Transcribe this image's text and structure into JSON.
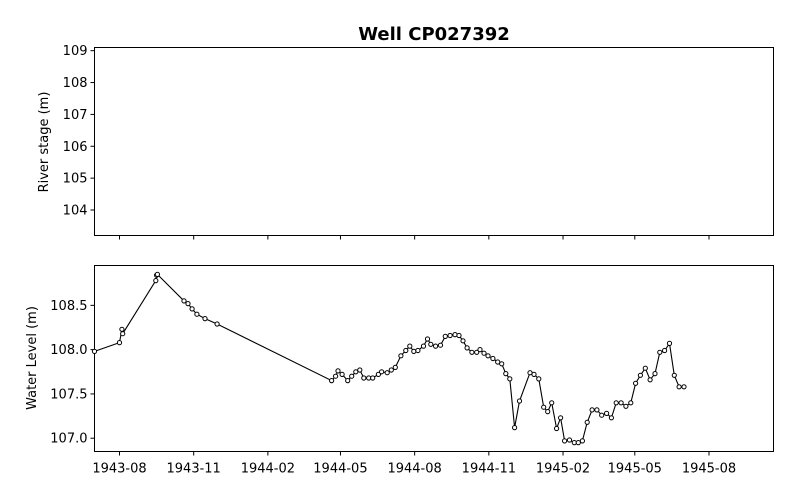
{
  "chart_data": [
    {
      "type": "line",
      "title": "Well CP027392",
      "xlabel": "",
      "ylabel": "River stage (m)",
      "xlim": [
        "1943-07-01",
        "1945-10-20"
      ],
      "ylim": [
        103.2,
        109.1
      ],
      "yticks": [
        "104",
        "105",
        "106",
        "107",
        "108",
        "109"
      ],
      "series": []
    },
    {
      "type": "line",
      "xlabel": "",
      "ylabel": "Water Level (m)",
      "xlim": [
        "1943-07-01",
        "1945-10-20"
      ],
      "ylim": [
        106.85,
        108.95
      ],
      "yticks": [
        "107.0",
        "107.5",
        "108.0",
        "108.5"
      ],
      "xticks": [
        "1943-08",
        "1943-11",
        "1944-02",
        "1944-05",
        "1944-08",
        "1944-11",
        "1945-02",
        "1945-05",
        "1945-08"
      ],
      "grid": false,
      "series": [
        {
          "color": "#000000",
          "marker": "circle-open",
          "points": [
            [
              "1943-07-01",
              107.98
            ],
            [
              "1943-08-01",
              108.08
            ],
            [
              "1943-08-04",
              108.23
            ],
            [
              "1943-08-05",
              108.18
            ],
            [
              "1943-09-15",
              108.78
            ],
            [
              "1943-09-16",
              108.84
            ],
            [
              "1943-09-17",
              108.85
            ],
            [
              "1943-10-20",
              108.55
            ],
            [
              "1943-10-25",
              108.52
            ],
            [
              "1943-10-30",
              108.46
            ],
            [
              "1943-11-05",
              108.4
            ],
            [
              "1943-11-15",
              108.35
            ],
            [
              "1943-11-30",
              108.29
            ],
            [
              "1944-04-20",
              107.65
            ],
            [
              "1944-04-25",
              107.7
            ],
            [
              "1944-04-28",
              107.76
            ],
            [
              "1944-05-03",
              107.72
            ],
            [
              "1944-05-10",
              107.65
            ],
            [
              "1944-05-15",
              107.7
            ],
            [
              "1944-05-20",
              107.75
            ],
            [
              "1944-05-25",
              107.77
            ],
            [
              "1944-05-30",
              107.68
            ],
            [
              "1944-06-05",
              107.68
            ],
            [
              "1944-06-10",
              107.68
            ],
            [
              "1944-06-17",
              107.72
            ],
            [
              "1944-06-21",
              107.75
            ],
            [
              "1944-06-28",
              107.74
            ],
            [
              "1944-07-03",
              107.77
            ],
            [
              "1944-07-08",
              107.8
            ],
            [
              "1944-07-15",
              107.93
            ],
            [
              "1944-07-21",
              107.99
            ],
            [
              "1944-07-26",
              108.04
            ],
            [
              "1944-07-31",
              107.98
            ],
            [
              "1944-08-05",
              107.99
            ],
            [
              "1944-08-12",
              108.04
            ],
            [
              "1944-08-17",
              108.12
            ],
            [
              "1944-08-21",
              108.06
            ],
            [
              "1944-08-27",
              108.04
            ],
            [
              "1944-09-02",
              108.05
            ],
            [
              "1944-09-08",
              108.15
            ],
            [
              "1944-09-14",
              108.16
            ],
            [
              "1944-09-20",
              108.17
            ],
            [
              "1944-09-25",
              108.16
            ],
            [
              "1944-09-30",
              108.1
            ],
            [
              "1944-10-05",
              108.02
            ],
            [
              "1944-10-11",
              107.97
            ],
            [
              "1944-10-17",
              107.97
            ],
            [
              "1944-10-21",
              108.0
            ],
            [
              "1944-10-26",
              107.96
            ],
            [
              "1944-10-31",
              107.93
            ],
            [
              "1944-11-06",
              107.9
            ],
            [
              "1944-11-12",
              107.86
            ],
            [
              "1944-11-17",
              107.84
            ],
            [
              "1944-11-22",
              107.73
            ],
            [
              "1944-11-27",
              107.67
            ],
            [
              "1944-12-03",
              107.12
            ],
            [
              "1944-12-09",
              107.42
            ],
            [
              "1944-12-22",
              107.74
            ],
            [
              "1944-12-27",
              107.72
            ],
            [
              "1945-01-02",
              107.67
            ],
            [
              "1945-01-08",
              107.35
            ],
            [
              "1945-01-13",
              107.3
            ],
            [
              "1945-01-18",
              107.4
            ],
            [
              "1945-01-24",
              107.11
            ],
            [
              "1945-01-29",
              107.23
            ],
            [
              "1945-02-03",
              106.97
            ],
            [
              "1945-02-09",
              106.98
            ],
            [
              "1945-02-15",
              106.95
            ],
            [
              "1945-02-20",
              106.95
            ],
            [
              "1945-02-25",
              106.97
            ],
            [
              "1945-03-03",
              107.18
            ],
            [
              "1945-03-09",
              107.32
            ],
            [
              "1945-03-15",
              107.32
            ],
            [
              "1945-03-21",
              107.26
            ],
            [
              "1945-03-27",
              107.28
            ],
            [
              "1945-04-02",
              107.23
            ],
            [
              "1945-04-08",
              107.4
            ],
            [
              "1945-04-14",
              107.4
            ],
            [
              "1945-04-20",
              107.36
            ],
            [
              "1945-04-26",
              107.4
            ],
            [
              "1945-05-02",
              107.62
            ],
            [
              "1945-05-08",
              107.71
            ],
            [
              "1945-05-14",
              107.79
            ],
            [
              "1945-05-20",
              107.66
            ],
            [
              "1945-05-26",
              107.73
            ],
            [
              "1945-06-01",
              107.97
            ],
            [
              "1945-06-07",
              107.99
            ],
            [
              "1945-06-13",
              108.07
            ],
            [
              "1945-06-19",
              107.71
            ],
            [
              "1945-06-25",
              107.58
            ],
            [
              "1945-07-01",
              107.58
            ]
          ]
        }
      ]
    }
  ]
}
